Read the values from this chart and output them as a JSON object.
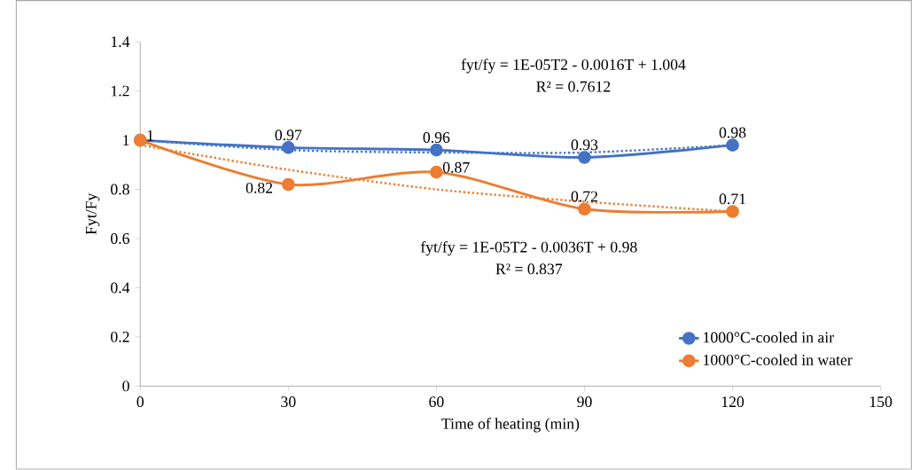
{
  "chart_data": {
    "type": "line",
    "xlabel": "Time of heating (min)",
    "ylabel": "Fyt/Fy",
    "x": [
      0,
      30,
      60,
      90,
      120
    ],
    "series": [
      {
        "name": "1000°C-cooled in air",
        "color": "#4472c4",
        "values": [
          1,
          0.97,
          0.96,
          0.93,
          0.98
        ],
        "marker": "circle",
        "line_style": "solid",
        "value_labels": [
          "1",
          "0.97",
          "0.96",
          "0.93",
          "0.98"
        ]
      },
      {
        "name": "1000°C-cooled in water",
        "color": "#ed7d31",
        "values": [
          1,
          0.82,
          0.87,
          0.72,
          0.71
        ],
        "marker": "circle",
        "line_style": "solid",
        "value_labels": [
          null,
          "0.82",
          "0.87",
          "0.72",
          "0.71"
        ]
      },
      {
        "color": "#4472c4",
        "values": [
          1.0,
          0.96,
          0.95,
          0.95,
          0.98
        ],
        "marker": "none",
        "line_style": "dotted"
      },
      {
        "color": "#ed7d31",
        "values": [
          0.98,
          0.88,
          0.8,
          0.75,
          0.71
        ],
        "marker": "none",
        "line_style": "dotted"
      }
    ],
    "xlim": [
      0,
      150
    ],
    "xticks": [
      0,
      30,
      60,
      90,
      120,
      150
    ],
    "ylim": [
      0,
      1.4
    ],
    "yticks": [
      0,
      0.2,
      0.4,
      0.6,
      0.8,
      1,
      1.2,
      1.4
    ],
    "grid": false,
    "legend": "bottom right",
    "annotations": [
      "fyt/fy = 1E-05T2 - 0.0016T + 1.004",
      "R² = 0.7612",
      "fyt/fy = 1E-05T2 - 0.0036T + 0.98",
      "R² = 0.837"
    ]
  }
}
